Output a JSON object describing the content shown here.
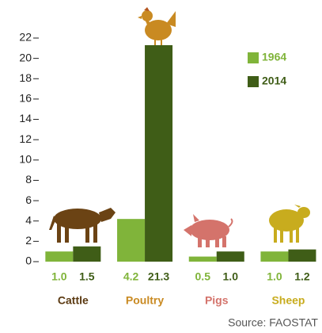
{
  "chart_data": {
    "type": "bar",
    "categories": [
      "Cattle",
      "Poultry",
      "Pigs",
      "Sheep"
    ],
    "category_colors": [
      "#5b3a12",
      "#c98a22",
      "#d4736b",
      "#c8ac1e"
    ],
    "series": [
      {
        "name": "1964",
        "color": "#80b43a",
        "values": [
          1.0,
          4.2,
          0.5,
          1.0
        ],
        "value_labels": [
          "1.0",
          "4.2",
          "0.5",
          "1.0"
        ]
      },
      {
        "name": "2014",
        "color": "#3f5d17",
        "values": [
          1.5,
          21.3,
          1.0,
          1.2
        ],
        "value_labels": [
          "1.5",
          "21.3",
          "1.0",
          "1.2"
        ]
      }
    ],
    "ylim": [
      0,
      22
    ],
    "yticks": [
      0,
      2,
      4,
      6,
      8,
      10,
      12,
      14,
      16,
      18,
      20,
      22
    ],
    "legend": "upper right",
    "source": "Source: FAOSTAT"
  }
}
